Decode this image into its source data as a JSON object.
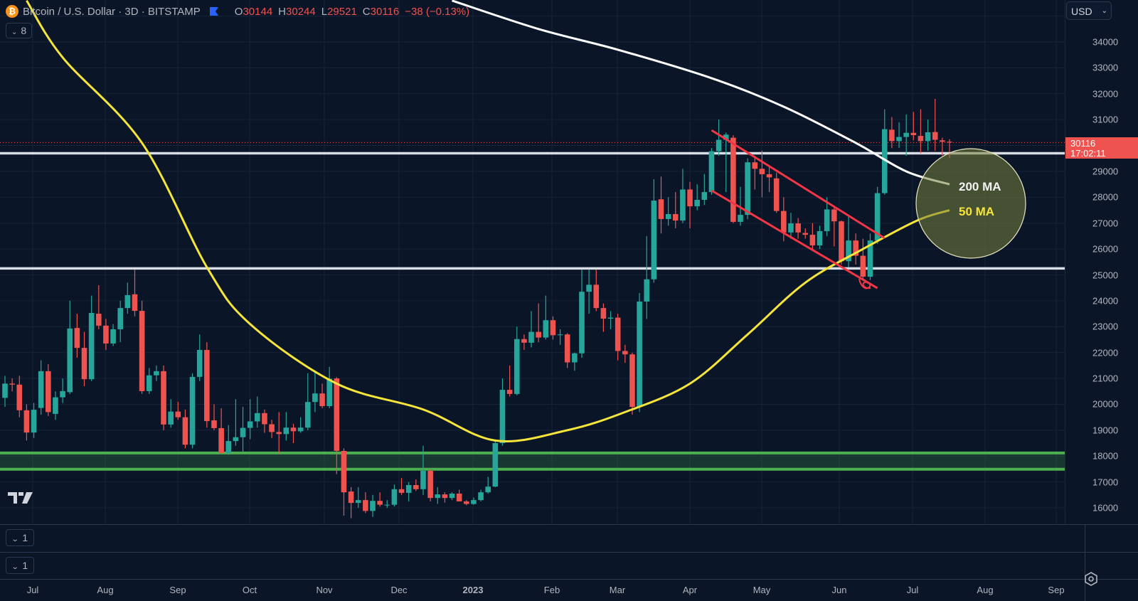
{
  "header": {
    "symbol": "Bitcoin / U.S. Dollar · 3D · BITSTAMP",
    "o_label": "O",
    "o": "30144",
    "h_label": "H",
    "h": "30244",
    "l_label": "L",
    "l": "29521",
    "c_label": "C",
    "c": "30116",
    "change": "−38 (−0.13%)",
    "icon": "bitcoin-icon"
  },
  "legend_toggle": "8",
  "currency": "USD",
  "panes": [
    {
      "value": "1"
    },
    {
      "value": "1"
    }
  ],
  "price_axis": {
    "ticks": [
      "34000",
      "33000",
      "32000",
      "31000",
      "30000",
      "29000",
      "28000",
      "27000",
      "26000",
      "25000",
      "24000",
      "23000",
      "22000",
      "21000",
      "20000",
      "19000",
      "18000",
      "17000",
      "16000"
    ],
    "current_price": "30116",
    "countdown": "17:02:11"
  },
  "time_axis": {
    "labels": [
      "Jul",
      "Aug",
      "Sep",
      "Oct",
      "Nov",
      "Dec",
      "2023",
      "Feb",
      "Mar",
      "Apr",
      "May",
      "Jun",
      "Jul",
      "Aug",
      "Sep"
    ]
  },
  "colors": {
    "background": "#0a1628",
    "up": "#26a69a",
    "down": "#ef5350",
    "ma200": "#ffffff",
    "ma50": "#f5e43a",
    "levels": "#d9dde5",
    "zone": "#4caf50",
    "channel": "#f23645"
  },
  "chart_data": {
    "type": "candlestick",
    "symbol": "Bitcoin / U.S. Dollar",
    "interval": "3D",
    "ylim": [
      15800,
      35600
    ],
    "grid": true,
    "candles_ohlc": [
      [
        20250,
        21100,
        19900,
        20800
      ],
      [
        20800,
        21000,
        20500,
        20760
      ],
      [
        20760,
        21100,
        19500,
        19770
      ],
      [
        19770,
        20000,
        18600,
        18910
      ],
      [
        18910,
        20050,
        18700,
        19790
      ],
      [
        19860,
        21700,
        19600,
        21280
      ],
      [
        21280,
        21550,
        19550,
        19700
      ],
      [
        19630,
        20500,
        19400,
        20270
      ],
      [
        20270,
        21000,
        20050,
        20510
      ],
      [
        20470,
        24000,
        20400,
        22930
      ],
      [
        22950,
        23500,
        21800,
        22180
      ],
      [
        22180,
        22800,
        20700,
        20970
      ],
      [
        20970,
        24200,
        20900,
        23530
      ],
      [
        23500,
        24600,
        22900,
        23040
      ],
      [
        23040,
        23300,
        22100,
        22350
      ],
      [
        22350,
        23100,
        22250,
        22900
      ],
      [
        22900,
        24000,
        22400,
        23720
      ],
      [
        23720,
        24700,
        23500,
        24220
      ],
      [
        24250,
        25200,
        23400,
        23610
      ],
      [
        23610,
        24000,
        20400,
        20510
      ],
      [
        20510,
        21400,
        20400,
        21120
      ],
      [
        21120,
        21500,
        20900,
        21280
      ],
      [
        21280,
        21500,
        19000,
        19220
      ],
      [
        19220,
        20200,
        19100,
        19720
      ],
      [
        19720,
        20100,
        19400,
        19500
      ],
      [
        19500,
        19800,
        18300,
        18440
      ],
      [
        18440,
        21200,
        18300,
        21060
      ],
      [
        21060,
        22700,
        20900,
        22100
      ],
      [
        22100,
        22400,
        19100,
        19350
      ],
      [
        19380,
        20000,
        19000,
        19080
      ],
      [
        19080,
        19850,
        18100,
        18120
      ],
      [
        18120,
        19200,
        18050,
        18580
      ],
      [
        18580,
        20200,
        18400,
        18730
      ],
      [
        18730,
        19900,
        18150,
        19090
      ],
      [
        19090,
        20200,
        18650,
        19340
      ],
      [
        19340,
        20300,
        19100,
        19660
      ],
      [
        19660,
        19800,
        18900,
        19230
      ],
      [
        19230,
        19400,
        18700,
        18930
      ],
      [
        18930,
        19700,
        18100,
        18850
      ],
      [
        18850,
        19700,
        18600,
        19100
      ],
      [
        19100,
        19250,
        18500,
        18960
      ],
      [
        18960,
        19500,
        18900,
        19100
      ],
      [
        19100,
        21200,
        19000,
        20090
      ],
      [
        20090,
        21300,
        19700,
        20420
      ],
      [
        20420,
        20800,
        19850,
        19930
      ],
      [
        19930,
        21450,
        19850,
        20990
      ],
      [
        21000,
        21050,
        17300,
        18200
      ],
      [
        18200,
        18300,
        15700,
        16600
      ],
      [
        16630,
        16800,
        15600,
        16190
      ],
      [
        16190,
        16800,
        16000,
        16300
      ],
      [
        16300,
        16600,
        15800,
        15880
      ],
      [
        15880,
        16500,
        15650,
        16270
      ],
      [
        16270,
        16600,
        16050,
        16120
      ],
      [
        16120,
        16300,
        16000,
        16120
      ],
      [
        16120,
        16900,
        16050,
        16720
      ],
      [
        16720,
        17150,
        16500,
        16580
      ],
      [
        16580,
        17000,
        16250,
        16880
      ],
      [
        16880,
        17100,
        16650,
        16720
      ],
      [
        16720,
        18400,
        16500,
        17430
      ],
      [
        17430,
        17500,
        16250,
        16380
      ],
      [
        16380,
        16800,
        16150,
        16520
      ],
      [
        16520,
        16600,
        16200,
        16380
      ],
      [
        16380,
        16600,
        16300,
        16550
      ],
      [
        16550,
        16700,
        16250,
        16250
      ],
      [
        16250,
        16300,
        16100,
        16150
      ],
      [
        16150,
        16400,
        16120,
        16300
      ],
      [
        16300,
        16700,
        16250,
        16600
      ],
      [
        16600,
        17200,
        16550,
        16820
      ],
      [
        16820,
        18600,
        16800,
        18500
      ],
      [
        18500,
        21000,
        18400,
        20560
      ],
      [
        20560,
        21500,
        20300,
        20400
      ],
      [
        20400,
        23000,
        20350,
        22520
      ],
      [
        22520,
        22700,
        22100,
        22380
      ],
      [
        22380,
        23600,
        22200,
        22800
      ],
      [
        22800,
        23900,
        22400,
        22580
      ],
      [
        22580,
        24200,
        22500,
        23250
      ],
      [
        23250,
        23400,
        22500,
        22670
      ],
      [
        22670,
        22900,
        22300,
        22700
      ],
      [
        22700,
        22750,
        21400,
        21620
      ],
      [
        21620,
        22000,
        21300,
        21970
      ],
      [
        21970,
        25200,
        21800,
        24350
      ],
      [
        24350,
        25200,
        23500,
        24620
      ],
      [
        24620,
        25200,
        23600,
        23720
      ],
      [
        23720,
        23900,
        22800,
        23310
      ],
      [
        23310,
        23600,
        22900,
        23350
      ],
      [
        23350,
        23500,
        21700,
        22060
      ],
      [
        22060,
        22300,
        21600,
        21930
      ],
      [
        21930,
        22000,
        19600,
        19900
      ],
      [
        19900,
        24300,
        19700,
        23970
      ],
      [
        23970,
        26500,
        23300,
        24830
      ],
      [
        24830,
        28700,
        24700,
        27870
      ],
      [
        27920,
        28800,
        26600,
        27160
      ],
      [
        27160,
        28000,
        26900,
        27350
      ],
      [
        27350,
        28200,
        26800,
        27100
      ],
      [
        27100,
        29100,
        27000,
        28300
      ],
      [
        28300,
        28600,
        26800,
        27650
      ],
      [
        27650,
        28500,
        27500,
        27900
      ],
      [
        27900,
        28900,
        27700,
        28200
      ],
      [
        28200,
        29900,
        28100,
        29780
      ],
      [
        29780,
        31000,
        29600,
        30220
      ],
      [
        30220,
        30500,
        28200,
        30420
      ],
      [
        30300,
        30400,
        27000,
        27050
      ],
      [
        27050,
        28400,
        26900,
        27320
      ],
      [
        27320,
        29500,
        27150,
        29350
      ],
      [
        29350,
        29600,
        28300,
        29100
      ],
      [
        29100,
        29800,
        28000,
        28890
      ],
      [
        28890,
        29200,
        28200,
        28770
      ],
      [
        28730,
        28950,
        27400,
        27470
      ],
      [
        27470,
        28000,
        26300,
        26640
      ],
      [
        26640,
        27400,
        26400,
        26990
      ],
      [
        26990,
        27200,
        26400,
        26640
      ],
      [
        26620,
        26800,
        26400,
        26550
      ],
      [
        26550,
        27000,
        26000,
        26140
      ],
      [
        26140,
        26900,
        26000,
        26690
      ],
      [
        26690,
        28000,
        26500,
        27530
      ],
      [
        27530,
        27600,
        26100,
        27070
      ],
      [
        27070,
        27100,
        25400,
        25530
      ],
      [
        25530,
        27300,
        25300,
        26330
      ],
      [
        26330,
        26600,
        25400,
        25740
      ],
      [
        25740,
        26400,
        24800,
        24930
      ],
      [
        24930,
        26600,
        24800,
        26330
      ],
      [
        26330,
        28400,
        26200,
        28160
      ],
      [
        28160,
        31400,
        28100,
        30630
      ],
      [
        30610,
        31100,
        29900,
        30170
      ],
      [
        30170,
        30900,
        29900,
        30330
      ],
      [
        30330,
        31200,
        29600,
        30490
      ],
      [
        30490,
        31300,
        30200,
        30400
      ],
      [
        30370,
        31400,
        29700,
        30170
      ],
      [
        30170,
        31000,
        29800,
        30510
      ],
      [
        30520,
        31800,
        29800,
        30220
      ],
      [
        30200,
        30300,
        29600,
        30144
      ],
      [
        30144,
        30244,
        29521,
        30116
      ]
    ],
    "moving_averages": [
      {
        "name": "200 MA",
        "points_by_candle": [
          [
            63,
            35600
          ],
          [
            75,
            34500
          ],
          [
            86,
            33700
          ],
          [
            99,
            32600
          ],
          [
            109,
            31500
          ],
          [
            119,
            30100
          ],
          [
            126,
            29000
          ],
          [
            132,
            28500
          ]
        ]
      },
      {
        "name": "50 MA",
        "points_by_candle": [
          [
            4,
            35600
          ],
          [
            9,
            33400
          ],
          [
            20,
            30100
          ],
          [
            29,
            25300
          ],
          [
            35,
            23100
          ],
          [
            47,
            20800
          ],
          [
            59,
            19800
          ],
          [
            69,
            18600
          ],
          [
            79,
            19000
          ],
          [
            87,
            19700
          ],
          [
            96,
            20800
          ],
          [
            104,
            22700
          ],
          [
            112,
            24700
          ],
          [
            120,
            26000
          ],
          [
            127.5,
            27100
          ],
          [
            132,
            27500
          ]
        ]
      }
    ],
    "horizontal_levels": [
      29700,
      25250
    ],
    "support_zone": [
      17490,
      18120
    ],
    "channel": {
      "upper": [
        [
          99,
          30590
        ],
        [
          123,
          26420
        ]
      ],
      "lower": [
        [
          99,
          28260
        ],
        [
          122,
          24490
        ]
      ]
    },
    "annotations": [
      "200 MA",
      "50 MA"
    ]
  }
}
